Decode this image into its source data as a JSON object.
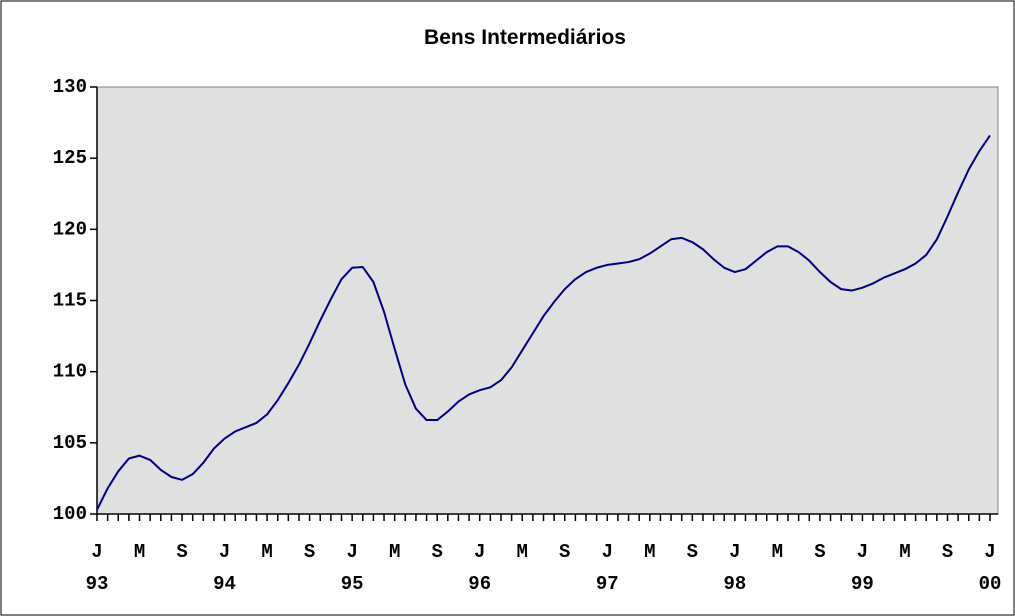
{
  "chart_data": {
    "type": "line",
    "title": "Bens Intermediários",
    "categories": [
      "J",
      null,
      null,
      null,
      "M",
      null,
      null,
      null,
      "S",
      null,
      null,
      null,
      "J",
      null,
      null,
      null,
      "M",
      null,
      null,
      null,
      "S",
      null,
      null,
      null,
      "J",
      null,
      null,
      null,
      "M",
      null,
      null,
      null,
      "S",
      null,
      null,
      null,
      "J",
      null,
      null,
      null,
      "M",
      null,
      null,
      null,
      "S",
      null,
      null,
      null,
      "J",
      null,
      null,
      null,
      "M",
      null,
      null,
      null,
      "S",
      null,
      null,
      null,
      "J",
      null,
      null,
      null,
      "M",
      null,
      null,
      null,
      "S",
      null,
      null,
      null,
      "J",
      null,
      null,
      null,
      "M",
      null,
      null,
      null,
      "S",
      null,
      null,
      null,
      "J"
    ],
    "category_groups": [
      "93",
      null,
      null,
      null,
      null,
      null,
      null,
      null,
      null,
      null,
      null,
      null,
      "94",
      null,
      null,
      null,
      null,
      null,
      null,
      null,
      null,
      null,
      null,
      null,
      "95",
      null,
      null,
      null,
      null,
      null,
      null,
      null,
      null,
      null,
      null,
      null,
      "96",
      null,
      null,
      null,
      null,
      null,
      null,
      null,
      null,
      null,
      null,
      null,
      "97",
      null,
      null,
      null,
      null,
      null,
      null,
      null,
      null,
      null,
      null,
      null,
      "98",
      null,
      null,
      null,
      null,
      null,
      null,
      null,
      null,
      null,
      null,
      null,
      "99",
      null,
      null,
      null,
      null,
      null,
      null,
      null,
      null,
      null,
      null,
      null,
      "00"
    ],
    "series": [
      {
        "name": "Bens Intermediários",
        "color": "#000080",
        "values": [
          100.3,
          101.8,
          103.0,
          103.9,
          104.1,
          103.8,
          103.1,
          102.6,
          102.4,
          102.8,
          103.6,
          104.6,
          105.3,
          105.8,
          106.1,
          106.4,
          107.0,
          108.0,
          109.2,
          110.5,
          112.0,
          113.6,
          115.1,
          116.5,
          117.3,
          117.35,
          116.3,
          114.2,
          111.6,
          109.1,
          107.4,
          106.6,
          106.6,
          107.2,
          107.9,
          108.4,
          108.7,
          108.9,
          109.4,
          110.3,
          111.5,
          112.7,
          113.9,
          114.9,
          115.8,
          116.5,
          117.0,
          117.3,
          117.5,
          117.6,
          117.7,
          117.9,
          118.3,
          118.8,
          119.3,
          119.4,
          119.1,
          118.6,
          117.9,
          117.3,
          117.0,
          117.2,
          117.8,
          118.4,
          118.8,
          118.8,
          118.4,
          117.8,
          117.0,
          116.3,
          115.8,
          115.7,
          115.9,
          116.2,
          116.6,
          116.9,
          117.2,
          117.6,
          118.2,
          119.3,
          120.9,
          122.6,
          124.2,
          125.5,
          126.6
        ]
      }
    ],
    "ylim": [
      100,
      130
    ],
    "yticks": [
      100,
      105,
      110,
      115,
      120,
      125,
      130
    ],
    "grid": false,
    "plot_background": "#e0e0e0"
  }
}
